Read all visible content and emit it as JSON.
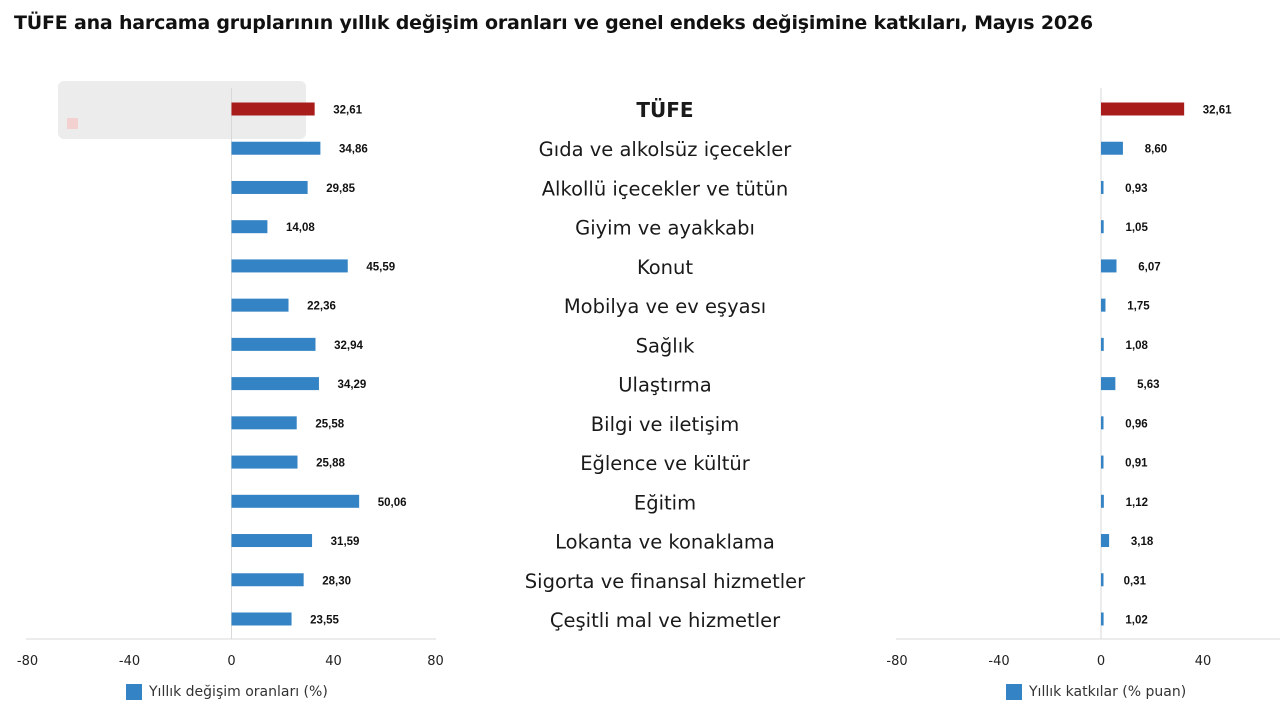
{
  "title": "TÜFE ana harcama gruplarının yıllık değişim oranları ve genel endeks değişimine katkıları, Mayıs 2026",
  "colors": {
    "highlight": "#a81c1c",
    "series": "#3483c4",
    "axis": "#d9d9d9"
  },
  "chart_data": [
    {
      "type": "bar",
      "orientation": "horizontal",
      "categories": [
        "TÜFE",
        "Gıda ve alkolsüz içecekler",
        "Alkollü içecekler ve tütün",
        "Giyim ve ayakkabı",
        "Konut",
        "Mobilya ve ev eşyası",
        "Sağlık",
        "Ulaştırma",
        "Bilgi ve iletişim",
        "Eğlence ve kültür",
        "Eğitim",
        "Lokanta ve konaklama",
        "Sigorta ve finansal hizmetler",
        "Çeşitli mal ve hizmetler"
      ],
      "series": [
        {
          "name": "Yıllık değişim oranları (%)",
          "values": [
            32.61,
            34.86,
            29.85,
            14.08,
            45.59,
            22.36,
            32.94,
            34.29,
            25.58,
            25.88,
            50.06,
            31.59,
            28.3,
            23.55
          ]
        }
      ],
      "data_labels": [
        "32,61",
        "34,86",
        "29,85",
        "14,08",
        "45,59",
        "22,36",
        "32,94",
        "34,29",
        "25,58",
        "25,88",
        "50,06",
        "31,59",
        "28,30",
        "23,55"
      ],
      "xlim": [
        -80,
        80
      ],
      "xticks": [
        -80,
        -40,
        0,
        40,
        80
      ],
      "xtick_labels": [
        "-80",
        "-40",
        "0",
        "40",
        "80"
      ],
      "highlight_index": 0,
      "legend": "bottom-left"
    },
    {
      "type": "bar",
      "orientation": "horizontal",
      "categories": [
        "TÜFE",
        "Gıda ve alkolsüz içecekler",
        "Alkollü içecekler ve tütün",
        "Giyim ve ayakkabı",
        "Konut",
        "Mobilya ve ev eşyası",
        "Sağlık",
        "Ulaştırma",
        "Bilgi ve iletişim",
        "Eğlence ve kültür",
        "Eğitim",
        "Lokanta ve konaklama",
        "Sigorta ve finansal hizmetler",
        "Çeşitli mal ve hizmetler"
      ],
      "series": [
        {
          "name": "Yıllık katkılar (% puan)",
          "values": [
            32.61,
            8.6,
            0.93,
            1.05,
            6.07,
            1.75,
            1.08,
            5.63,
            0.96,
            0.91,
            1.12,
            3.18,
            0.31,
            1.02
          ]
        }
      ],
      "data_labels": [
        "32,61",
        "8,60",
        "0,93",
        "1,05",
        "6,07",
        "1,75",
        "1,08",
        "5,63",
        "0,96",
        "0,91",
        "1,12",
        "3,18",
        "0,31",
        "1,02"
      ],
      "xlim": [
        -80,
        80
      ],
      "xticks": [
        -80,
        -40,
        0,
        40
      ],
      "xtick_labels": [
        "-80",
        "-40",
        "0",
        "40"
      ],
      "highlight_index": 0,
      "legend": "bottom-right"
    }
  ]
}
